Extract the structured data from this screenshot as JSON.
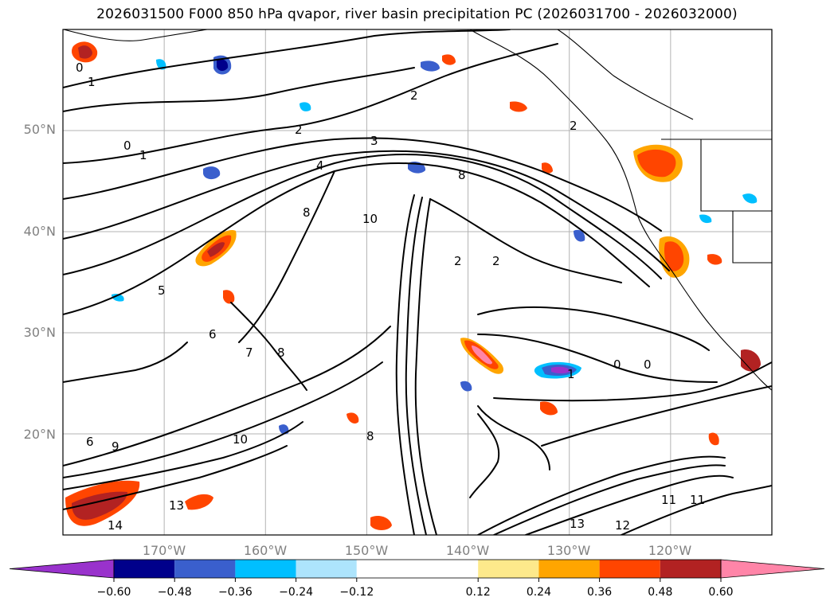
{
  "title": "2026031500 F000 850 hPa qvapor, river basin precipitation PC (2026031700 - 2026032000)",
  "map": {
    "lat_labels": [
      "50°N",
      "40°N",
      "30°N",
      "20°N"
    ],
    "lon_labels": [
      "170°W",
      "160°W",
      "150°W",
      "140°W",
      "130°W",
      "120°W"
    ],
    "extent": {
      "lon_min": -180,
      "lon_max": -110,
      "lat_min": 10,
      "lat_max": 60
    },
    "gridlines": true
  },
  "colorbar": {
    "extend": "both",
    "bounds": [
      -0.72,
      -0.6,
      -0.48,
      -0.36,
      -0.24,
      -0.12,
      0.12,
      0.24,
      0.36,
      0.48,
      0.6,
      0.72
    ],
    "colors": [
      "#9932cc",
      "#00008b",
      "#3a5fcd",
      "#00bfff",
      "#ade4fc",
      "#ffffff",
      "#fde98b",
      "#ffa500",
      "#ff4500",
      "#b22222",
      "#ff85a8"
    ],
    "tick_labels": [
      "−0.60",
      "−0.48",
      "−0.36",
      "−0.24",
      "−0.12",
      "0.12",
      "0.24",
      "0.36",
      "0.48",
      "0.60"
    ]
  },
  "contour_labels": [
    "1",
    "0",
    "1",
    "0",
    "2",
    "2",
    "3",
    "4",
    "2",
    "8",
    "10",
    "8",
    "2",
    "2",
    "5",
    "6",
    "7",
    "8",
    "6",
    "9",
    "10",
    "13",
    "14",
    "8",
    "1",
    "0",
    "0",
    "12",
    "13",
    "11",
    "11"
  ]
}
